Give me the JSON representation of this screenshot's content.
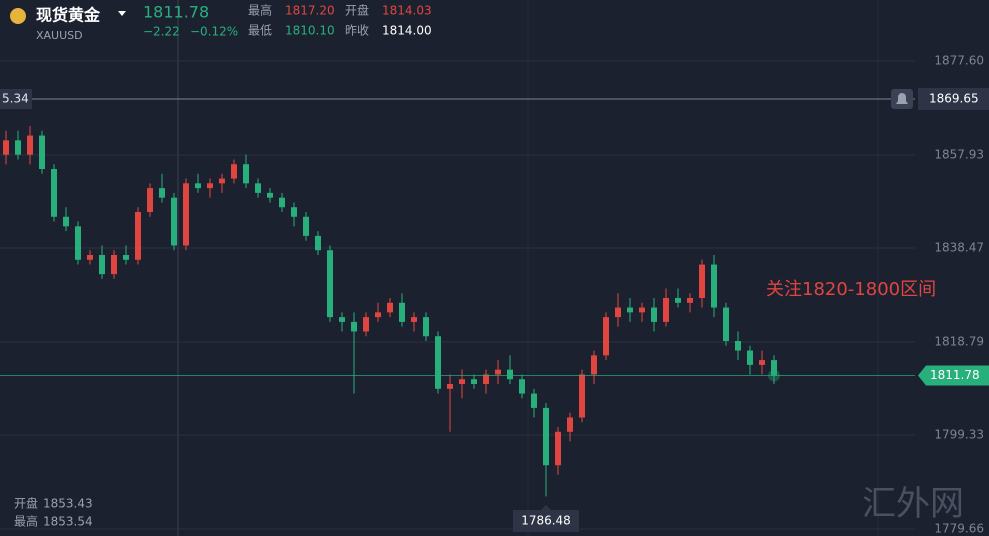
{
  "header": {
    "name": "现货黄金",
    "symbol": "XAUUSD",
    "change": "−2.22",
    "change_pct": "−0.12%",
    "high_label": "最高",
    "high": "1817.20",
    "open_label": "开盘",
    "open": "1814.03",
    "low_label": "最低",
    "low": "1810.10",
    "prev_label": "昨收",
    "prev": "1814.00"
  },
  "footer": {
    "open_label": "开盘",
    "open": "1853.43",
    "high_label": "最高",
    "high": "1853.54"
  },
  "watermark": "汇外网",
  "chart_data": {
    "type": "candlestick",
    "annotation": "关注1820-1800区间",
    "last_price": 1811.78,
    "alert_price": 1869.65,
    "crosshair_label": "5.34",
    "low_marker": 1786.48,
    "up_color": "#e0463f",
    "down_color": "#27b07c",
    "ylim": [
      1778.19,
      1890.37
    ],
    "yticks": [
      {
        "value": 1877.6,
        "label": "1877.60"
      },
      1857.93,
      1838.47,
      1818.79,
      1799.33,
      1779.66
    ],
    "open": [
      1858,
      1861,
      1858,
      1862,
      1855,
      1845,
      1843,
      1836,
      1837,
      1833,
      1837,
      1836,
      1846,
      1851,
      1849,
      1839,
      1852,
      1851,
      1852,
      1853,
      1856,
      1852,
      1850,
      1849,
      1847,
      1845,
      1841,
      1838,
      1824,
      1823,
      1821,
      1824,
      1825,
      1827,
      1823,
      1824,
      1820,
      1809,
      1810,
      1811,
      1810,
      1812,
      1813,
      1811,
      1808,
      1805,
      1793,
      1800,
      1803,
      1812,
      1816,
      1824,
      1826,
      1825,
      1826,
      1823,
      1828,
      1827,
      1828,
      1835,
      1826,
      1819,
      1817,
      1814,
      1815
    ],
    "high": [
      1863,
      1863,
      1864,
      1863,
      1856,
      1847,
      1844,
      1838,
      1839,
      1838,
      1839,
      1847,
      1852,
      1854,
      1850,
      1853,
      1854,
      1853,
      1854,
      1857,
      1858,
      1853,
      1851,
      1850,
      1848,
      1846,
      1842,
      1839,
      1825,
      1825,
      1825,
      1827,
      1828,
      1829,
      1825,
      1825,
      1821,
      1812,
      1813,
      1812,
      1813,
      1815,
      1816,
      1812,
      1809,
      1806,
      1801,
      1804,
      1813,
      1817,
      1825,
      1829,
      1828,
      1827,
      1828,
      1830,
      1830,
      1829,
      1836,
      1837,
      1827,
      1821,
      1818,
      1817,
      1816
    ],
    "low": [
      1856,
      1857,
      1856,
      1854,
      1844,
      1842,
      1835,
      1835,
      1832,
      1832,
      1835,
      1835,
      1845,
      1848,
      1838,
      1838,
      1850,
      1849,
      1850,
      1852,
      1851,
      1849,
      1848,
      1846,
      1843,
      1840,
      1837,
      1823,
      1821,
      1808,
      1820,
      1823,
      1824,
      1822,
      1821,
      1819,
      1808,
      1800,
      1807,
      1809,
      1808,
      1810,
      1810,
      1807,
      1803,
      1786.48,
      1791,
      1798,
      1802,
      1810,
      1815,
      1822,
      1823,
      1823,
      1821,
      1822,
      1826,
      1825,
      1826,
      1824,
      1818,
      1815,
      1812,
      1812,
      1810
    ],
    "close": [
      1861,
      1858,
      1862,
      1855,
      1845,
      1843,
      1836,
      1837,
      1833,
      1837,
      1836,
      1846,
      1851,
      1849,
      1839,
      1852,
      1851,
      1852,
      1853,
      1856,
      1852,
      1850,
      1849,
      1847,
      1845,
      1841,
      1838,
      1824,
      1823,
      1821,
      1824,
      1825,
      1827,
      1823,
      1824,
      1820,
      1809,
      1810,
      1811,
      1810,
      1812,
      1813,
      1811,
      1808,
      1805,
      1793,
      1800,
      1803,
      1812,
      1816,
      1824,
      1826,
      1825,
      1826,
      1823,
      1828,
      1827,
      1828,
      1835,
      1826,
      1819,
      1817,
      1814,
      1815,
      1811.78
    ]
  }
}
